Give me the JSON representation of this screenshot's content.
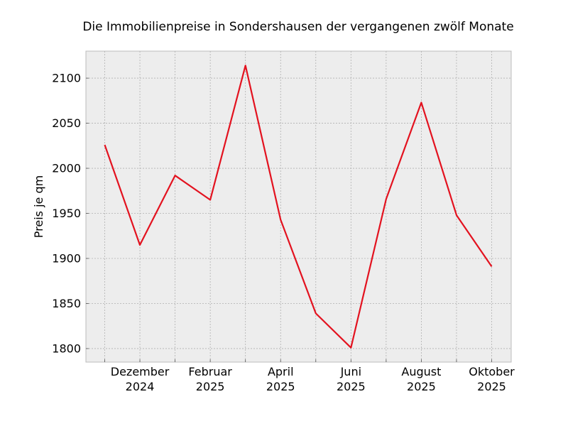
{
  "chart_data": {
    "type": "line",
    "title": "Die Immobilienpreise in Sondershausen der vergangenen zwölf Monate",
    "xlabel": "",
    "ylabel": "Preis je qm",
    "x": [
      "2024-11",
      "2024-12",
      "2025-01",
      "2025-02",
      "2025-03",
      "2025-04",
      "2025-05",
      "2025-06",
      "2025-07",
      "2025-08",
      "2025-09",
      "2025-10"
    ],
    "series": [
      {
        "values": [
          2026,
          1915,
          1992,
          1965,
          2114,
          1943,
          1839,
          1801,
          1966,
          2073,
          1948,
          1891
        ]
      }
    ],
    "x_tick_labels": [
      {
        "month": "Dezember",
        "year": "2024",
        "index": 1
      },
      {
        "month": "Februar",
        "year": "2025",
        "index": 3
      },
      {
        "month": "April",
        "year": "2025",
        "index": 5
      },
      {
        "month": "Juni",
        "year": "2025",
        "index": 7
      },
      {
        "month": "August",
        "year": "2025",
        "index": 9
      },
      {
        "month": "Oktober",
        "year": "2025",
        "index": 11
      }
    ],
    "y_ticks": [
      1800,
      1850,
      1900,
      1950,
      2000,
      2050,
      2100
    ],
    "ylim": [
      1785,
      2130
    ],
    "grid": true,
    "colors": {
      "line": "#e3121f",
      "background": "#ededed",
      "grid": "#b0b0b0"
    }
  }
}
